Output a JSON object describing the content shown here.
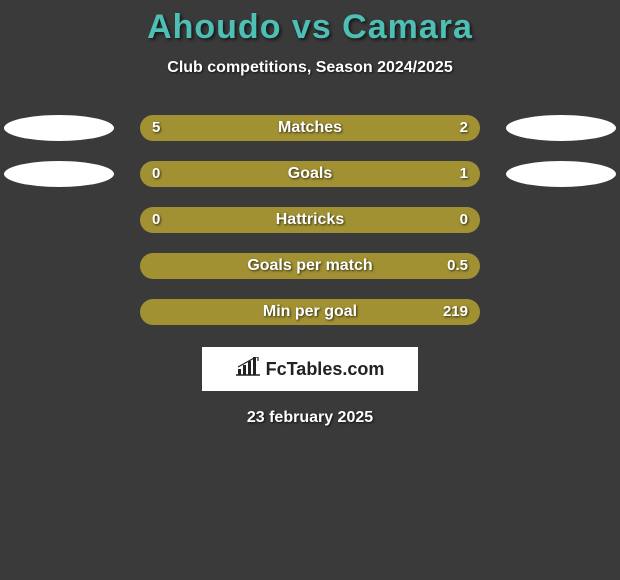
{
  "header": {
    "title": "Ahoudo vs Camara",
    "subtitle": "Club competitions, Season 2024/2025",
    "title_color": "#4ebfb5"
  },
  "bar_colors": {
    "base": "#a19133",
    "left_fill": "#a19133",
    "right_fill": "#a19133"
  },
  "rows": [
    {
      "label": "Matches",
      "left_val": "5",
      "right_val": "2",
      "left_pct": 68,
      "right_pct": 32,
      "show_left_ellipse": true,
      "show_right_ellipse": true
    },
    {
      "label": "Goals",
      "left_val": "0",
      "right_val": "1",
      "left_pct": 18,
      "right_pct": 82,
      "show_left_ellipse": true,
      "show_right_ellipse": true
    },
    {
      "label": "Hattricks",
      "left_val": "0",
      "right_val": "0",
      "left_pct": 50,
      "right_pct": 50,
      "show_left_ellipse": false,
      "show_right_ellipse": false
    },
    {
      "label": "Goals per match",
      "left_val": "",
      "right_val": "0.5",
      "left_pct": 0,
      "right_pct": 0,
      "show_left_ellipse": false,
      "show_right_ellipse": false
    },
    {
      "label": "Min per goal",
      "left_val": "",
      "right_val": "219",
      "left_pct": 0,
      "right_pct": 0,
      "show_left_ellipse": false,
      "show_right_ellipse": false
    }
  ],
  "logo": {
    "text": "FcTables.com",
    "icon_name": "bar-chart-icon"
  },
  "footer": {
    "date": "23 february 2025"
  }
}
